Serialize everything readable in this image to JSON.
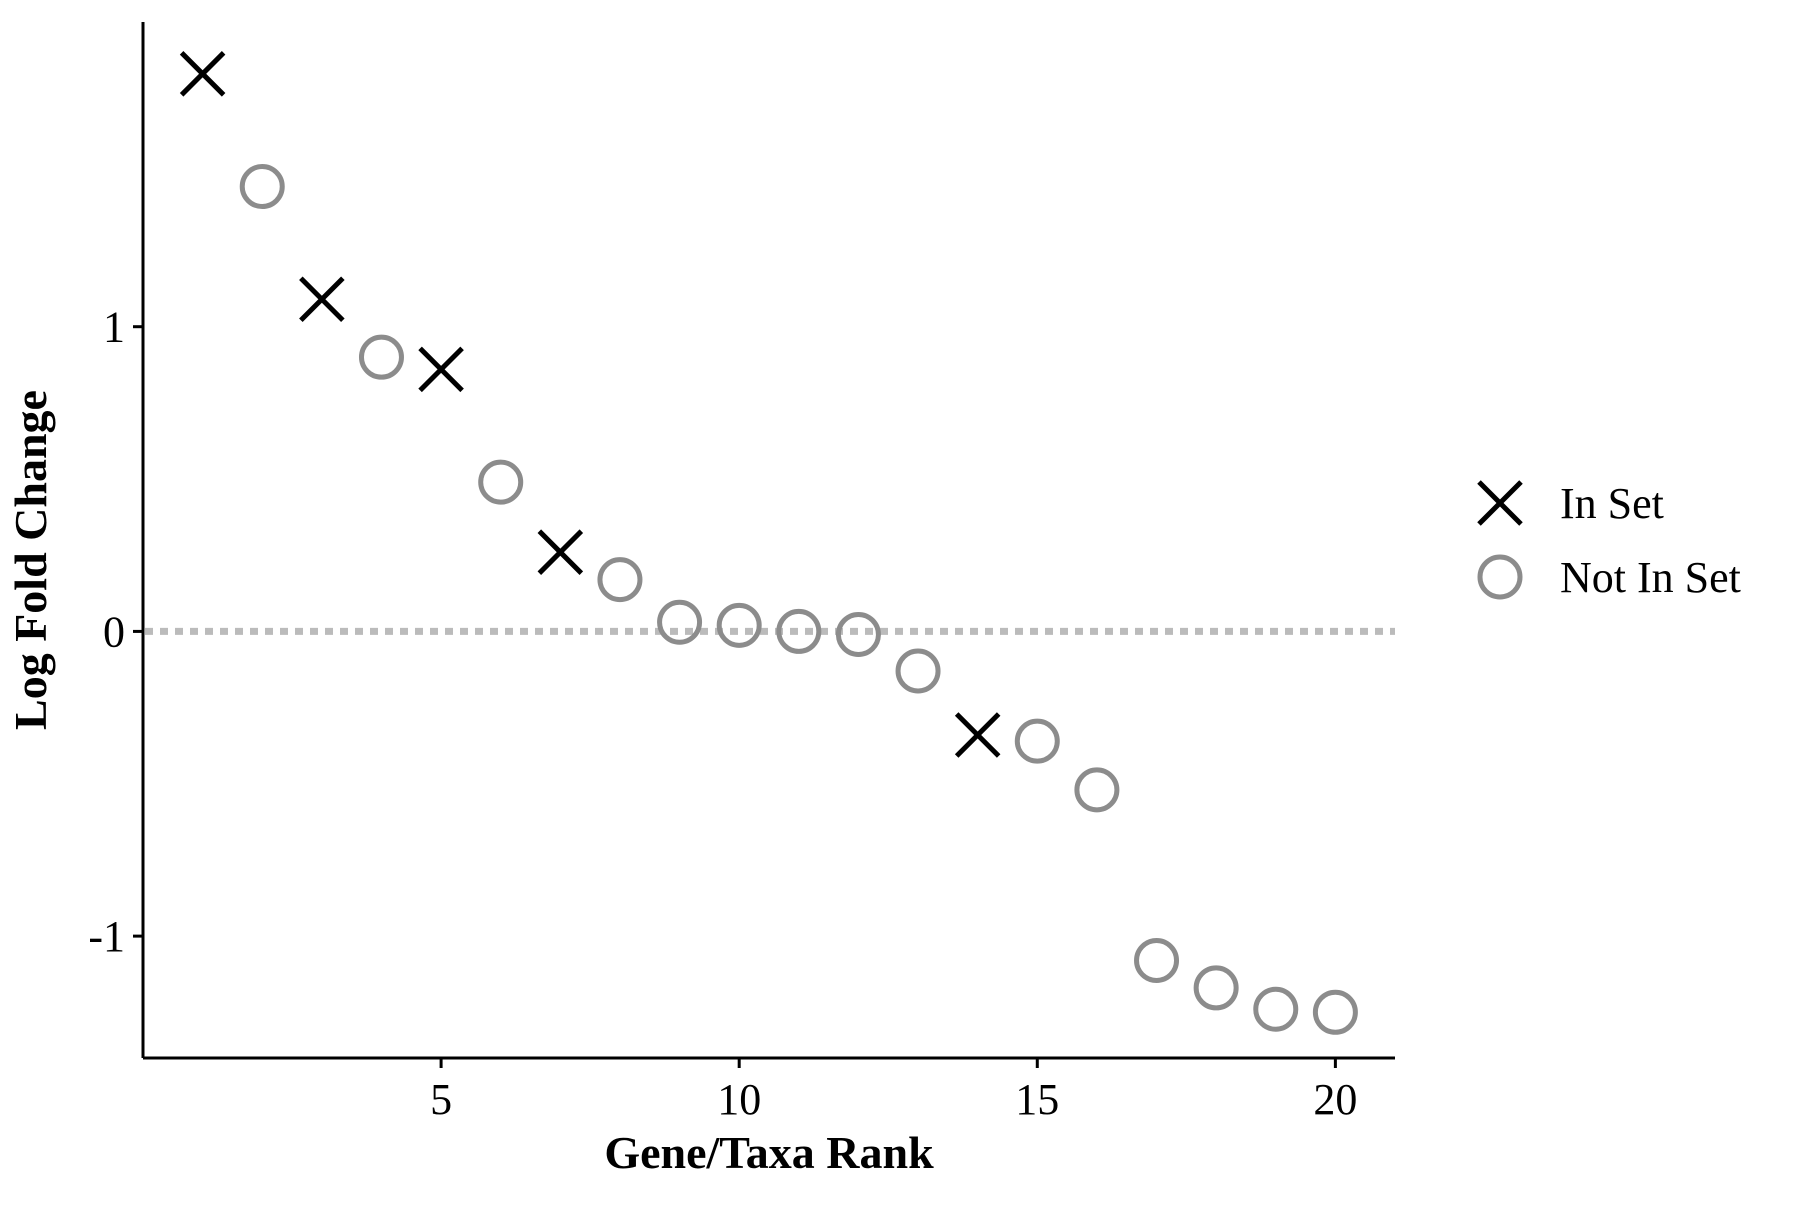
{
  "chart_data": {
    "type": "scatter",
    "xlabel": "Gene/Taxa Rank",
    "ylabel": "Log Fold Change",
    "xlim": [
      0.0,
      21.0
    ],
    "ylim": [
      -1.4,
      2.0
    ],
    "x_ticks": [
      5,
      10,
      15,
      20
    ],
    "x_tick_labels": [
      "5",
      "10",
      "15",
      "20"
    ],
    "y_ticks": [
      -1,
      0,
      1
    ],
    "y_tick_labels": [
      "-1",
      "0",
      "1"
    ],
    "grid": false,
    "reference_line": {
      "y": 0,
      "style": "dotted",
      "color": "#bbbbbb"
    },
    "legend_position": "right",
    "series": [
      {
        "name": "In Set",
        "marker": "x",
        "color": "#000000",
        "x": [
          1,
          3,
          5,
          7,
          14
        ],
        "y": [
          1.83,
          1.09,
          0.86,
          0.26,
          -0.34
        ]
      },
      {
        "name": "Not In Set",
        "marker": "circle",
        "color": "#8c8c8c",
        "x": [
          2,
          4,
          6,
          8,
          9,
          10,
          11,
          12,
          13,
          15,
          16,
          17,
          18,
          19,
          20
        ],
        "y": [
          1.46,
          0.9,
          0.49,
          0.17,
          0.03,
          0.02,
          0.0,
          -0.01,
          -0.13,
          -0.36,
          -0.52,
          -1.08,
          -1.17,
          -1.24,
          -1.25
        ]
      }
    ]
  }
}
